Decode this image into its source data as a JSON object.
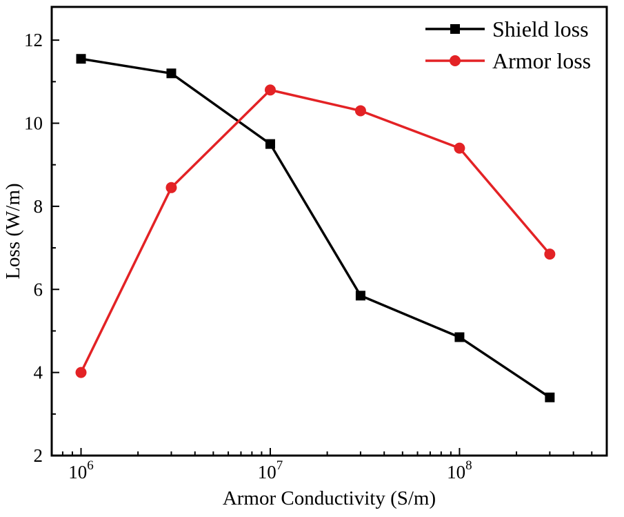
{
  "chart_data": {
    "type": "line",
    "title": "",
    "xlabel": "Armor Conductivity (S/m)",
    "ylabel": "Loss (W/m)",
    "x_scale": "log",
    "grid": false,
    "legend_position": "top-right",
    "x": [
      1000000.0,
      3000000.0,
      10000000.0,
      30000000.0,
      100000000.0,
      300000000.0
    ],
    "xlim": [
      700000.0,
      600000000.0
    ],
    "ylim": [
      2,
      12.8
    ],
    "x_major_ticks": [
      1000000.0,
      10000000.0,
      100000000.0
    ],
    "x_major_tick_labels": [
      "10^6",
      "10^7",
      "10^8"
    ],
    "y_major_ticks": [
      2,
      4,
      6,
      8,
      10,
      12
    ],
    "y_minor_ticks": [
      3,
      5,
      7,
      9,
      11
    ],
    "series": [
      {
        "name": "Shield loss",
        "color": "#000000",
        "marker": "square",
        "values": [
          11.55,
          11.2,
          9.5,
          5.85,
          4.85,
          3.4
        ]
      },
      {
        "name": "Armor loss",
        "color": "#e32225",
        "marker": "circle",
        "values": [
          4.0,
          8.45,
          10.8,
          10.3,
          9.4,
          6.85
        ]
      }
    ],
    "colors": {
      "frame": "#000000",
      "background": "#ffffff"
    }
  }
}
